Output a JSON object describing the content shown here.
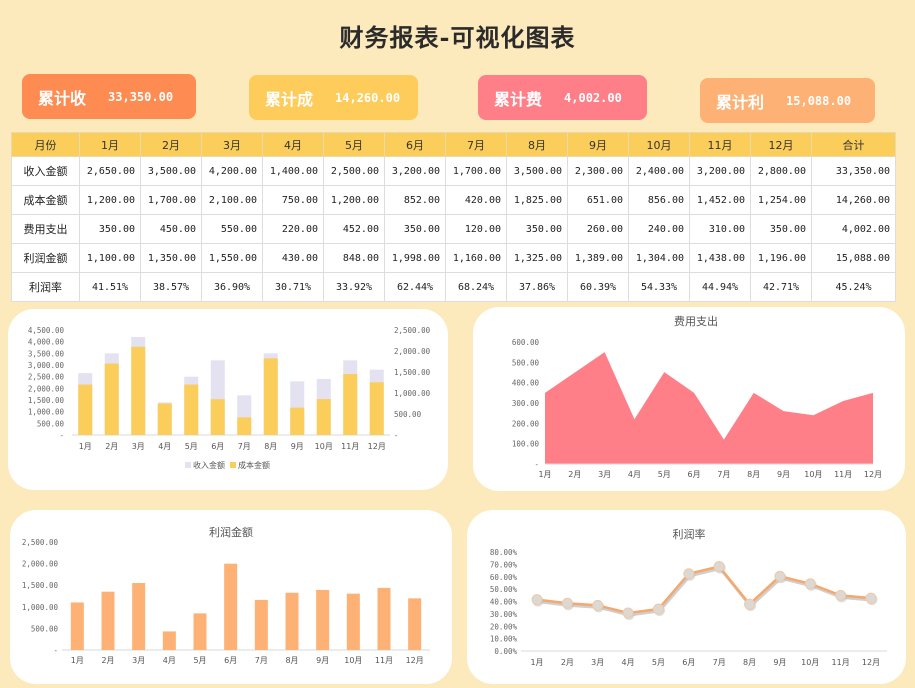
{
  "title": "财务报表-可视化图表",
  "kpis": [
    {
      "label": "累计收",
      "value": "33,350.00",
      "color": "#FE8C52"
    },
    {
      "label": "累计成",
      "value": "14,260.00",
      "color": "#FDCC5B"
    },
    {
      "label": "累计费",
      "value": "4,002.00",
      "color": "#FE7F88"
    },
    {
      "label": "累计利",
      "value": "15,088.00",
      "color": "#FDB174"
    }
  ],
  "table": {
    "headers": [
      "月份",
      "1月",
      "2月",
      "3月",
      "4月",
      "5月",
      "6月",
      "7月",
      "8月",
      "9月",
      "10月",
      "11月",
      "12月",
      "合计"
    ],
    "rows": [
      {
        "label": "收入金额",
        "cells": [
          "2,650.00",
          "3,500.00",
          "4,200.00",
          "1,400.00",
          "2,500.00",
          "3,200.00",
          "1,700.00",
          "3,500.00",
          "2,300.00",
          "2,400.00",
          "3,200.00",
          "2,800.00",
          "33,350.00"
        ]
      },
      {
        "label": "成本金额",
        "cells": [
          "1,200.00",
          "1,700.00",
          "2,100.00",
          "750.00",
          "1,200.00",
          "852.00",
          "420.00",
          "1,825.00",
          "651.00",
          "856.00",
          "1,452.00",
          "1,254.00",
          "14,260.00"
        ]
      },
      {
        "label": "费用支出",
        "cells": [
          "350.00",
          "450.00",
          "550.00",
          "220.00",
          "452.00",
          "350.00",
          "120.00",
          "350.00",
          "260.00",
          "240.00",
          "310.00",
          "350.00",
          "4,002.00"
        ]
      },
      {
        "label": "利润金额",
        "cells": [
          "1,100.00",
          "1,350.00",
          "1,550.00",
          "430.00",
          "848.00",
          "1,998.00",
          "1,160.00",
          "1,325.00",
          "1,389.00",
          "1,304.00",
          "1,438.00",
          "1,196.00",
          "15,088.00"
        ]
      },
      {
        "label": "利润率",
        "cells": [
          "41.51%",
          "38.57%",
          "36.90%",
          "30.71%",
          "33.92%",
          "62.44%",
          "68.24%",
          "37.86%",
          "60.39%",
          "54.33%",
          "44.94%",
          "42.71%",
          "45.24%"
        ]
      }
    ]
  },
  "chart_data": [
    {
      "type": "bar",
      "title": "",
      "categories": [
        "1月",
        "2月",
        "3月",
        "4月",
        "5月",
        "6月",
        "7月",
        "8月",
        "9月",
        "10月",
        "11月",
        "12月"
      ],
      "series": [
        {
          "name": "收入金额",
          "axis": "left",
          "color": "#E4E1F1",
          "values": [
            2650,
            3500,
            4200,
            1400,
            2500,
            3200,
            1700,
            3500,
            2300,
            2400,
            3200,
            2800
          ]
        },
        {
          "name": "成本金额",
          "axis": "right",
          "color": "#FBCD5A",
          "values": [
            1200,
            1700,
            2100,
            750,
            1200,
            852,
            420,
            1825,
            651,
            856,
            1452,
            1254
          ]
        }
      ],
      "yticks_left": [
        "-",
        "500.00",
        "1,000.00",
        "1,500.00",
        "2,000.00",
        "2,500.00",
        "3,000.00",
        "3,500.00",
        "4,000.00",
        "4,500.00"
      ],
      "yticks_right": [
        "-",
        "500.00",
        "1,000.00",
        "1,500.00",
        "2,000.00",
        "2,500.00"
      ],
      "ylim_left": [
        0,
        4500
      ],
      "ylim_right": [
        0,
        2500
      ],
      "legend": [
        "收入金额",
        "成本金额"
      ],
      "legend_position": "bottom",
      "grid": false
    },
    {
      "type": "area",
      "title": "费用支出",
      "categories": [
        "1月",
        "2月",
        "3月",
        "4月",
        "5月",
        "6月",
        "7月",
        "8月",
        "9月",
        "10月",
        "11月",
        "12月"
      ],
      "values": [
        350,
        450,
        550,
        220,
        452,
        350,
        120,
        350,
        260,
        240,
        310,
        350
      ],
      "color": "#FE7F88",
      "yticks": [
        "-",
        "100.00",
        "200.00",
        "300.00",
        "400.00",
        "500.00",
        "600.00"
      ],
      "ylim": [
        0,
        600
      ],
      "grid": false
    },
    {
      "type": "bar",
      "title": "利润金额",
      "categories": [
        "1月",
        "2月",
        "3月",
        "4月",
        "5月",
        "6月",
        "7月",
        "8月",
        "9月",
        "10月",
        "11月",
        "12月"
      ],
      "values": [
        1100,
        1350,
        1550,
        430,
        848,
        1998,
        1160,
        1325,
        1389,
        1304,
        1438,
        1196
      ],
      "color": "#FDB174",
      "yticks": [
        "-",
        "500.00",
        "1,000.00",
        "1,500.00",
        "2,000.00",
        "2,500.00"
      ],
      "ylim": [
        0,
        2500
      ],
      "grid": false
    },
    {
      "type": "line",
      "title": "利润率",
      "categories": [
        "1月",
        "2月",
        "3月",
        "4月",
        "5月",
        "6月",
        "7月",
        "8月",
        "9月",
        "10月",
        "11月",
        "12月"
      ],
      "values": [
        41.51,
        38.57,
        36.9,
        30.71,
        33.92,
        62.44,
        68.24,
        37.86,
        60.39,
        54.33,
        44.94,
        42.71
      ],
      "color": "#F6A86C",
      "marker_color": "#DCD8D4",
      "yticks": [
        "0.00%",
        "10.00%",
        "20.00%",
        "30.00%",
        "40.00%",
        "50.00%",
        "60.00%",
        "70.00%",
        "80.00%"
      ],
      "ylim": [
        0,
        80
      ],
      "grid": false
    }
  ]
}
